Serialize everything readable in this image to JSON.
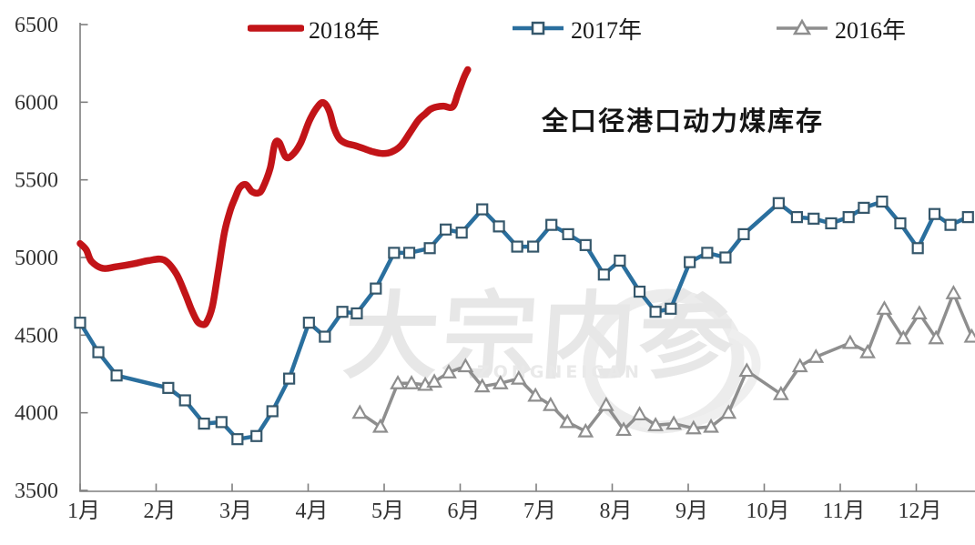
{
  "title": "全口径港口动力煤库存",
  "watermark": {
    "text": "大宗内参",
    "subtext": "ZONGNEICAN"
  },
  "colors": {
    "series_2018": "#c21418",
    "series_2017": "#2a6f9e",
    "series_2017_marker_edge": "#35576b",
    "series_2016": "#8e8e8e",
    "axis": "#7f7f7f",
    "tick_label": "#333333",
    "legend_text": "#1a1a1a",
    "watermark_gray": "#e7e7e7",
    "background": "#ffffff"
  },
  "chart_data": {
    "type": "line",
    "title": "全口径港口动力煤库存",
    "xlabel": "",
    "ylabel": "",
    "grid": false,
    "legend_position": "top",
    "ylim": [
      3500,
      6500
    ],
    "y_tick_step": 500,
    "y_tick_labels": [
      "6500",
      "6000",
      "5500",
      "5000",
      "4500",
      "4000",
      "3500"
    ],
    "y_tick_values": [
      6500,
      6000,
      5500,
      5000,
      4500,
      4000,
      3500
    ],
    "x_tick_labels": [
      "1月",
      "2月",
      "3月",
      "4月",
      "5月",
      "6月",
      "7月",
      "8月",
      "9月",
      "10月",
      "11月",
      "12月"
    ],
    "x_tick_values": [
      1,
      2,
      3,
      4,
      5,
      6,
      7,
      8,
      9,
      10,
      11,
      12
    ],
    "series": [
      {
        "name": "2018年",
        "color": "#c21418",
        "marker": "none",
        "line_width": 7.5,
        "smooth": true,
        "points": [
          [
            1.0,
            5090
          ],
          [
            1.08,
            5050
          ],
          [
            1.15,
            4975
          ],
          [
            1.3,
            4930
          ],
          [
            1.47,
            4940
          ],
          [
            1.71,
            4960
          ],
          [
            1.9,
            4980
          ],
          [
            2.1,
            4985
          ],
          [
            2.26,
            4900
          ],
          [
            2.38,
            4770
          ],
          [
            2.46,
            4670
          ],
          [
            2.54,
            4590
          ],
          [
            2.6,
            4570
          ],
          [
            2.66,
            4580
          ],
          [
            2.74,
            4685
          ],
          [
            2.82,
            4920
          ],
          [
            2.9,
            5165
          ],
          [
            2.98,
            5310
          ],
          [
            3.04,
            5385
          ],
          [
            3.1,
            5450
          ],
          [
            3.18,
            5470
          ],
          [
            3.26,
            5425
          ],
          [
            3.34,
            5415
          ],
          [
            3.4,
            5445
          ],
          [
            3.5,
            5575
          ],
          [
            3.56,
            5730
          ],
          [
            3.62,
            5740
          ],
          [
            3.7,
            5650
          ],
          [
            3.78,
            5655
          ],
          [
            3.9,
            5735
          ],
          [
            4.02,
            5885
          ],
          [
            4.14,
            5980
          ],
          [
            4.21,
            5995
          ],
          [
            4.28,
            5940
          ],
          [
            4.34,
            5835
          ],
          [
            4.41,
            5765
          ],
          [
            4.5,
            5735
          ],
          [
            4.62,
            5720
          ],
          [
            4.74,
            5700
          ],
          [
            4.86,
            5680
          ],
          [
            4.98,
            5670
          ],
          [
            5.1,
            5680
          ],
          [
            5.22,
            5720
          ],
          [
            5.34,
            5805
          ],
          [
            5.45,
            5885
          ],
          [
            5.54,
            5925
          ],
          [
            5.61,
            5955
          ],
          [
            5.69,
            5970
          ],
          [
            5.78,
            5975
          ],
          [
            5.9,
            5970
          ],
          [
            5.97,
            6055
          ],
          [
            6.05,
            6160
          ],
          [
            6.1,
            6210
          ]
        ]
      },
      {
        "name": "2017年",
        "color": "#2a6f9e",
        "marker": "square",
        "marker_fill": "#ffffff",
        "marker_edge": "#35576b",
        "line_width": 4.5,
        "smooth": false,
        "points": [
          [
            1.0,
            4580
          ],
          [
            1.24,
            4390
          ],
          [
            1.48,
            4240
          ],
          [
            2.16,
            4160
          ],
          [
            2.38,
            4080
          ],
          [
            2.63,
            3930
          ],
          [
            2.86,
            3940
          ],
          [
            3.07,
            3830
          ],
          [
            3.32,
            3850
          ],
          [
            3.53,
            4010
          ],
          [
            3.75,
            4220
          ],
          [
            4.01,
            4580
          ],
          [
            4.22,
            4490
          ],
          [
            4.45,
            4650
          ],
          [
            4.64,
            4640
          ],
          [
            4.89,
            4800
          ],
          [
            5.13,
            5030
          ],
          [
            5.33,
            5030
          ],
          [
            5.6,
            5060
          ],
          [
            5.81,
            5180
          ],
          [
            6.02,
            5160
          ],
          [
            6.29,
            5310
          ],
          [
            6.51,
            5200
          ],
          [
            6.75,
            5070
          ],
          [
            6.96,
            5070
          ],
          [
            7.2,
            5210
          ],
          [
            7.42,
            5150
          ],
          [
            7.65,
            5080
          ],
          [
            7.89,
            4890
          ],
          [
            8.1,
            4980
          ],
          [
            8.36,
            4780
          ],
          [
            8.57,
            4650
          ],
          [
            8.77,
            4670
          ],
          [
            9.02,
            4970
          ],
          [
            9.25,
            5030
          ],
          [
            9.49,
            5000
          ],
          [
            9.73,
            5150
          ],
          [
            10.19,
            5350
          ],
          [
            10.43,
            5260
          ],
          [
            10.65,
            5250
          ],
          [
            10.88,
            5220
          ],
          [
            11.11,
            5260
          ],
          [
            11.31,
            5320
          ],
          [
            11.55,
            5360
          ],
          [
            11.79,
            5220
          ],
          [
            12.02,
            5060
          ],
          [
            12.24,
            5280
          ],
          [
            12.45,
            5210
          ],
          [
            12.68,
            5260
          ]
        ]
      },
      {
        "name": "2016年",
        "color": "#8e8e8e",
        "marker": "triangle",
        "marker_fill": "#ffffff",
        "marker_edge": "#8e8e8e",
        "line_width": 3.5,
        "smooth": false,
        "points": [
          [
            4.68,
            4000
          ],
          [
            4.95,
            3910
          ],
          [
            5.18,
            4190
          ],
          [
            5.36,
            4190
          ],
          [
            5.54,
            4180
          ],
          [
            5.66,
            4200
          ],
          [
            5.85,
            4260
          ],
          [
            6.07,
            4300
          ],
          [
            6.29,
            4170
          ],
          [
            6.53,
            4190
          ],
          [
            6.77,
            4220
          ],
          [
            6.99,
            4110
          ],
          [
            7.19,
            4050
          ],
          [
            7.41,
            3940
          ],
          [
            7.65,
            3880
          ],
          [
            7.92,
            4050
          ],
          [
            8.15,
            3890
          ],
          [
            8.36,
            3990
          ],
          [
            8.57,
            3920
          ],
          [
            8.81,
            3930
          ],
          [
            9.07,
            3900
          ],
          [
            9.3,
            3910
          ],
          [
            9.53,
            4000
          ],
          [
            9.77,
            4270
          ],
          [
            10.22,
            4120
          ],
          [
            10.47,
            4300
          ],
          [
            10.68,
            4360
          ],
          [
            11.13,
            4450
          ],
          [
            11.36,
            4390
          ],
          [
            11.58,
            4670
          ],
          [
            11.83,
            4480
          ],
          [
            12.04,
            4640
          ],
          [
            12.26,
            4480
          ],
          [
            12.49,
            4770
          ],
          [
            12.73,
            4490
          ]
        ]
      }
    ]
  }
}
